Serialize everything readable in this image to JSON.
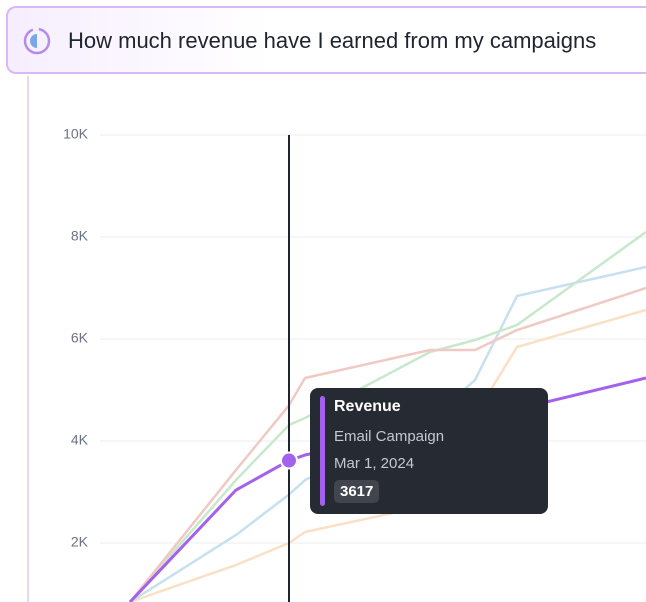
{
  "prompt": "How much revenue have I earned from my campaigns",
  "chart_data": {
    "type": "line",
    "x": [
      30,
      136,
      189,
      205,
      330,
      375,
      417,
      546
    ],
    "xlim": [
      0,
      546
    ],
    "ylim": [
      0,
      10000
    ],
    "yticks": [
      {
        "value": 2000,
        "label": "2K"
      },
      {
        "value": 4000,
        "label": "4K"
      },
      {
        "value": 6000,
        "label": "6K"
      },
      {
        "value": 8000,
        "label": "8K"
      },
      {
        "value": 10000,
        "label": "10K"
      }
    ],
    "grid": true,
    "series": [
      {
        "name": "Email Campaign",
        "color": "#a461ec",
        "values": [
          843,
          3039,
          3617,
          3725,
          4235,
          4431,
          4627,
          5235
        ]
      },
      {
        "color": "#f0c8c4",
        "values": [
          843,
          3431,
          4700,
          5235,
          5784,
          5784,
          6176,
          7000
        ]
      },
      {
        "color": "#c8e8cc",
        "values": [
          843,
          3235,
          4314,
          4451,
          5745,
          5980,
          6275,
          8098
        ]
      },
      {
        "color": "#c6e0f0",
        "values": [
          843,
          2157,
          2950,
          3235,
          4400,
          5196,
          6843,
          7412
        ]
      },
      {
        "color": "#fae0c6",
        "values": [
          843,
          1569,
          2000,
          2216,
          2745,
          4500,
          5843,
          6569
        ]
      }
    ],
    "tooltip": {
      "title": "Revenue",
      "date": "Mar 1, 2024"
    }
  }
}
